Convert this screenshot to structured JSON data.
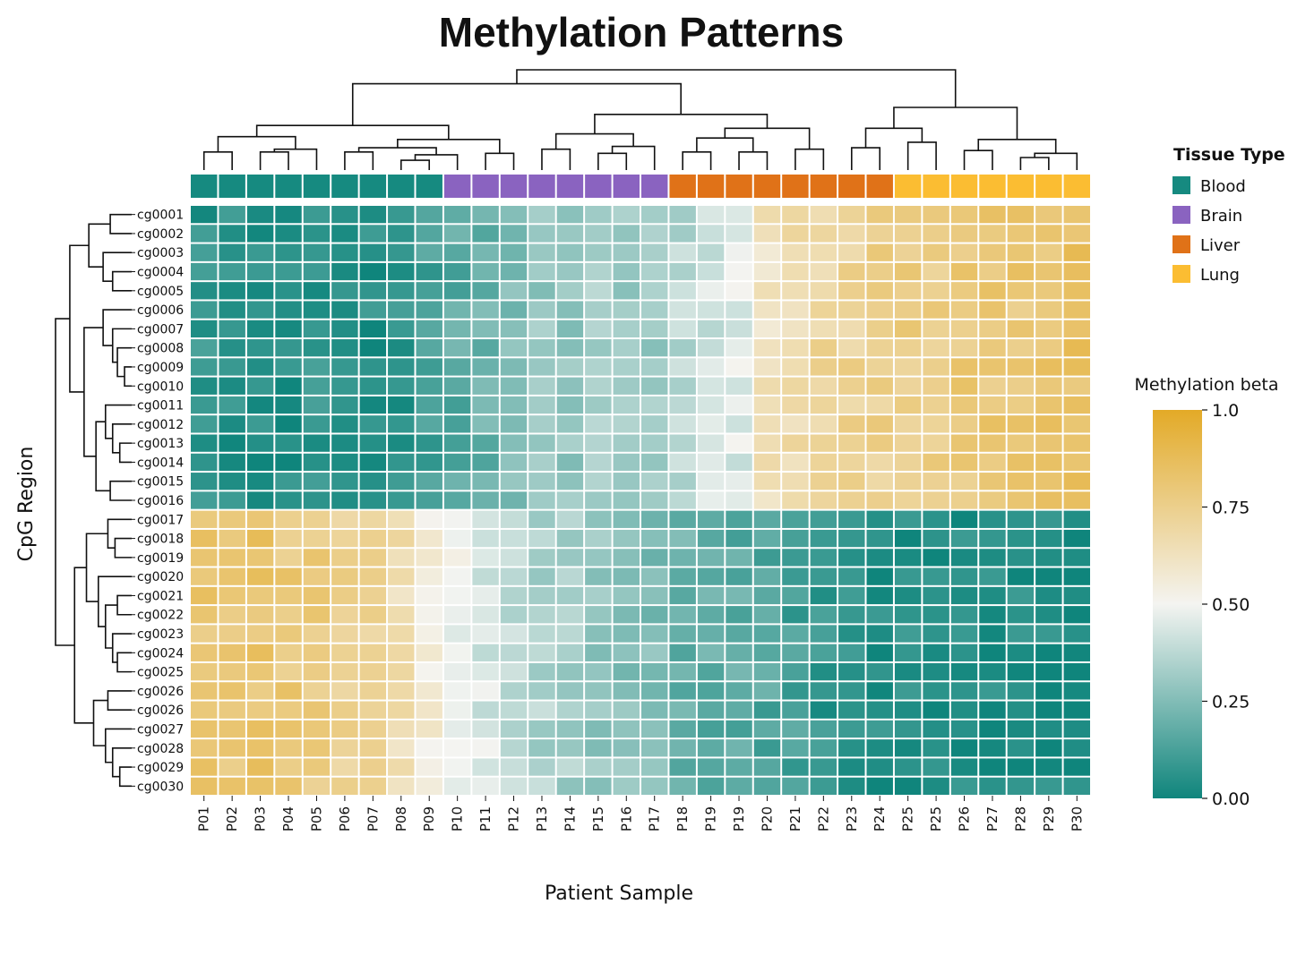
{
  "chart_data": {
    "type": "heatmap",
    "title": "Methylation Patterns",
    "xlabel": "Patient Sample",
    "ylabel": "CpG Region",
    "columns": [
      "P01",
      "P02",
      "P03",
      "P04",
      "P05",
      "P06",
      "P07",
      "P08",
      "P09",
      "P10",
      "P11",
      "P12",
      "P13",
      "P14",
      "P15",
      "P16",
      "P17",
      "P18",
      "P19",
      "P19",
      "P20",
      "P21",
      "P22",
      "P23",
      "P24",
      "P25",
      "P25",
      "P26",
      "P27",
      "P28",
      "P29",
      "P30"
    ],
    "rows": [
      "cg0001",
      "cg0002",
      "cg0003",
      "cg0004",
      "cg0005",
      "cg0006",
      "cg0007",
      "cg0008",
      "cg0009",
      "cg0010",
      "cg0011",
      "cg0012",
      "cg0013",
      "cg0014",
      "cg0015",
      "cg0016",
      "cg0017",
      "cg0018",
      "cg0019",
      "cg0020",
      "cg0021",
      "cg0022",
      "cg0023",
      "cg0024",
      "cg0025",
      "cg0026",
      "cg0026",
      "cg0027",
      "cg0028",
      "cg0029",
      "cg0030"
    ],
    "column_annotation": {
      "title": "Tissue Type",
      "tissues": [
        "Blood",
        "Blood",
        "Blood",
        "Blood",
        "Blood",
        "Blood",
        "Blood",
        "Blood",
        "Blood",
        "Brain",
        "Brain",
        "Brain",
        "Brain",
        "Brain",
        "Brain",
        "Brain",
        "Brain",
        "Liver",
        "Liver",
        "Liver",
        "Liver",
        "Liver",
        "Liver",
        "Liver",
        "Liver",
        "Lung",
        "Lung",
        "Lung",
        "Lung",
        "Lung",
        "Lung",
        "Lung"
      ],
      "legend": [
        {
          "label": "Blood",
          "color": "#168a80"
        },
        {
          "label": "Brain",
          "color": "#8a63c0"
        },
        {
          "label": "Liver",
          "color": "#e07218"
        },
        {
          "label": "Lung",
          "color": "#fbbd32"
        }
      ]
    },
    "colorbar": {
      "title": "Methylation beta",
      "range": [
        0,
        1
      ],
      "ticks": [
        "0.00",
        "0.25",
        "0.50",
        "0.75",
        "1.0"
      ],
      "colors": {
        "low": "#0f857c",
        "mid": "#f4f4f1",
        "high": "#e3aa27"
      }
    },
    "group_means": {
      "rows_cg0001_to_cg0016": [
        0.07,
        0.06,
        0.05,
        0.05,
        0.07,
        0.05,
        0.05,
        0.06,
        0.12,
        0.17,
        0.2,
        0.24,
        0.29,
        0.3,
        0.33,
        0.32,
        0.3,
        0.37,
        0.42,
        0.45,
        0.62,
        0.66,
        0.7,
        0.72,
        0.74,
        0.76,
        0.77,
        0.79,
        0.8,
        0.8,
        0.81,
        0.84
      ],
      "rows_cg0017_to_cg0030": [
        0.8,
        0.81,
        0.82,
        0.79,
        0.78,
        0.74,
        0.7,
        0.66,
        0.56,
        0.48,
        0.44,
        0.4,
        0.35,
        0.33,
        0.3,
        0.27,
        0.25,
        0.2,
        0.18,
        0.17,
        0.15,
        0.12,
        0.08,
        0.06,
        0.05,
        0.05,
        0.04,
        0.04,
        0.04,
        0.04,
        0.04,
        0.03
      ]
    },
    "grid": false,
    "legend_position": "right",
    "dendrograms": {
      "rows": "left",
      "columns": "top"
    }
  }
}
